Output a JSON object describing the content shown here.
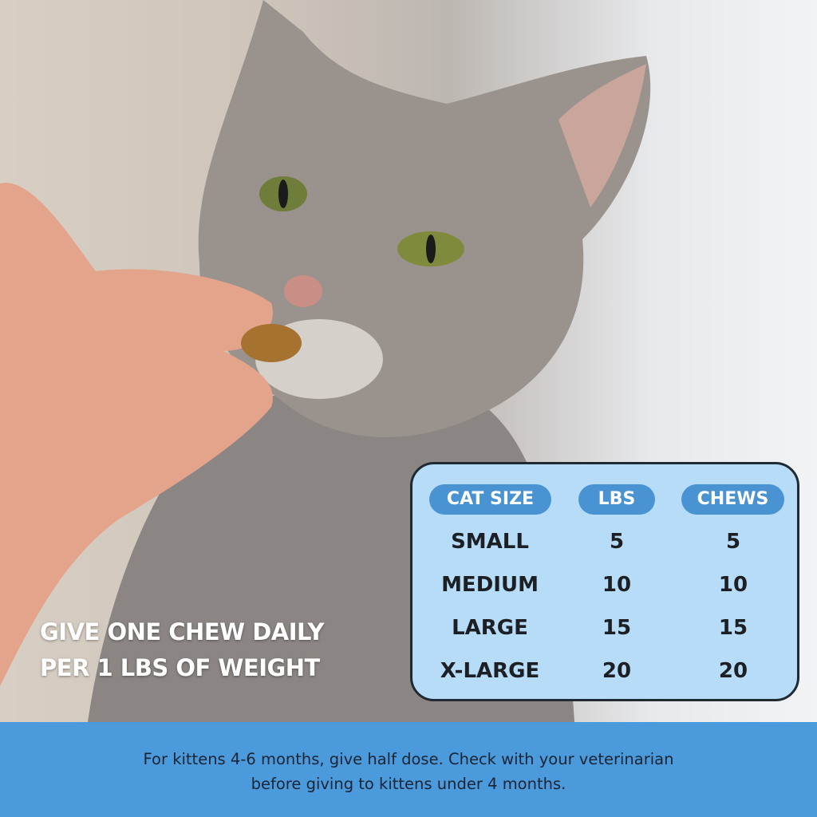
{
  "tagline": [
    "GIVE ONE CHEW DAILY",
    "PER 1 LBS OF WEIGHT"
  ],
  "table": {
    "headers": [
      "CAT SIZE",
      "LBS",
      "CHEWS"
    ],
    "rows": [
      [
        "SMALL",
        "5",
        "5"
      ],
      [
        "MEDIUM",
        "10",
        "10"
      ],
      [
        "LARGE",
        "15",
        "15"
      ],
      [
        "X-LARGE",
        "20",
        "20"
      ]
    ]
  },
  "footer": {
    "lines": [
      "For kittens 4-6 months, give half dose. Check with your veterinarian",
      "before giving to kittens under 4 months."
    ]
  },
  "colors": {
    "table_bg": "#b7dcf7",
    "header_pill": "#4a93d3",
    "footer_bg": "#4b9adb"
  }
}
